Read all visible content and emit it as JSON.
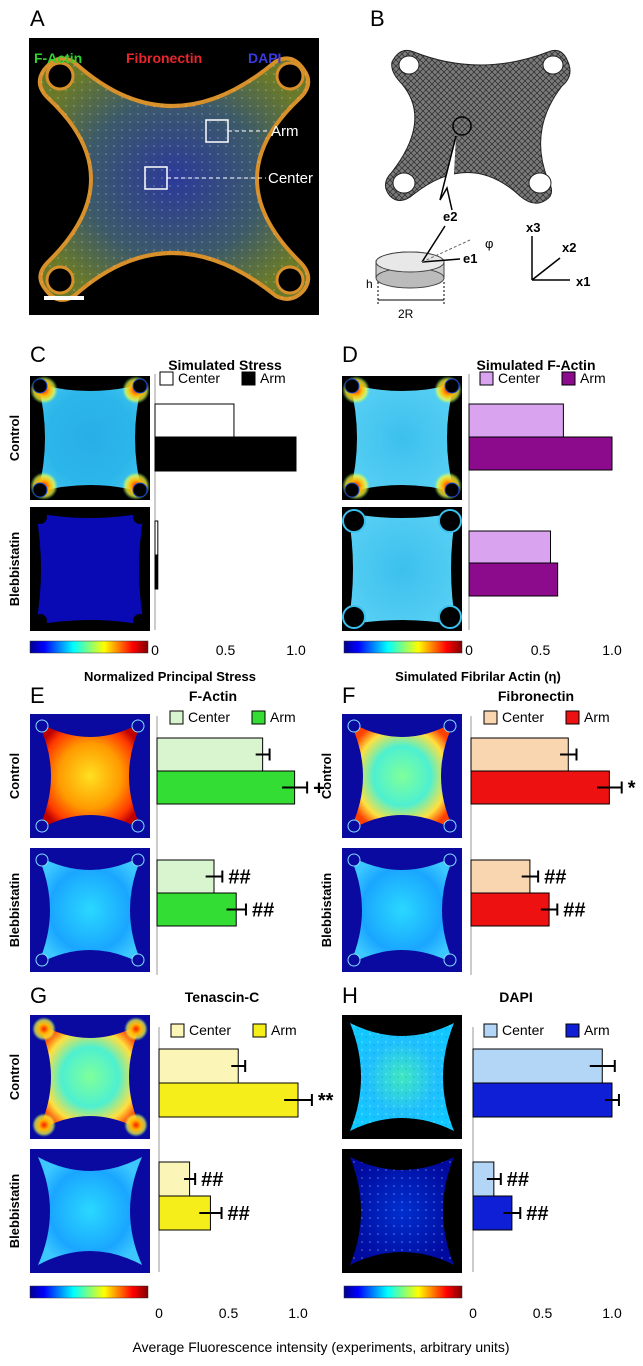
{
  "panel_letters": [
    "A",
    "B",
    "C",
    "D",
    "E",
    "F",
    "G",
    "H"
  ],
  "panelA": {
    "stain_labels": [
      {
        "text": "F-Actin",
        "color": "#2ed32e"
      },
      {
        "text": "Fibronectin",
        "color": "#e8252a"
      },
      {
        "text": "DAPI",
        "color": "#3a3adf"
      }
    ],
    "callouts": [
      "Arm",
      "Center"
    ]
  },
  "panelB": {
    "vectors": [
      "e2",
      "e1"
    ],
    "angle_symbol": "φ",
    "dims": [
      "h",
      "2R"
    ],
    "axes": [
      "x3",
      "x2",
      "x1"
    ]
  },
  "row_labels": [
    "Control",
    "Blebbistatin"
  ],
  "legend": [
    "Center",
    "Arm"
  ],
  "axis": {
    "ticks": [
      "0",
      "0.5",
      "1.0"
    ],
    "label_stress": "Normalized Principal Stress",
    "label_actin": "Simulated  Fibrilar Actin (η)",
    "label_bottom": "Average Fluorescence intensity (experiments, arbitrary units)"
  },
  "colors": {
    "center_C": "#ffffff",
    "arm_C": "#000000",
    "center_D": "#d9a3f0",
    "arm_D": "#8c0a8c",
    "center_E": "#d8f5d0",
    "arm_E": "#33dd33",
    "center_F": "#fad6b0",
    "arm_F": "#ee1111",
    "center_G": "#fbf6b8",
    "arm_G": "#f5ee1a",
    "center_H": "#b3d6f6",
    "arm_H": "#0f1fd6"
  },
  "chart_data": [
    {
      "panel": "C",
      "type": "bar",
      "title": "Simulated Stress",
      "categories": [
        "Control",
        "Blebbistatin"
      ],
      "series": [
        {
          "name": "Center",
          "values": [
            0.56,
            0.02
          ]
        },
        {
          "name": "Arm",
          "values": [
            1.0,
            0.02
          ]
        }
      ],
      "xlabel": "Normalized Principal Stress",
      "xlim": [
        0,
        1.1
      ]
    },
    {
      "panel": "D",
      "type": "bar",
      "title": "Simulated F-Actin",
      "categories": [
        "Control",
        "Blebbistatin"
      ],
      "series": [
        {
          "name": "Center",
          "values": [
            0.66,
            0.57
          ]
        },
        {
          "name": "Arm",
          "values": [
            1.0,
            0.62
          ]
        }
      ],
      "xlabel": "Simulated  Fibrilar Actin (η)",
      "xlim": [
        0,
        1.1
      ]
    },
    {
      "panel": "E",
      "type": "bar",
      "title": "F-Actin",
      "categories": [
        "Control",
        "Blebbistatin"
      ],
      "series": [
        {
          "name": "Center",
          "values": [
            0.76,
            0.41
          ],
          "errors": [
            0.05,
            0.06
          ]
        },
        {
          "name": "Arm",
          "values": [
            0.99,
            0.57
          ],
          "errors": [
            0.09,
            0.07
          ]
        }
      ],
      "annotations": [
        "+",
        "##",
        "##"
      ],
      "xlim": [
        0,
        1.1
      ]
    },
    {
      "panel": "F",
      "type": "bar",
      "title": "Fibronectin",
      "categories": [
        "Control",
        "Blebbistatin"
      ],
      "series": [
        {
          "name": "Center",
          "values": [
            0.71,
            0.43
          ],
          "errors": [
            0.06,
            0.06
          ]
        },
        {
          "name": "Arm",
          "values": [
            1.01,
            0.57
          ],
          "errors": [
            0.09,
            0.06
          ]
        }
      ],
      "annotations": [
        "*",
        "##",
        "##"
      ],
      "xlim": [
        0,
        1.1
      ]
    },
    {
      "panel": "G",
      "type": "bar",
      "title": "Tenascin-C",
      "categories": [
        "Control",
        "Blebbistatin"
      ],
      "series": [
        {
          "name": "Center",
          "values": [
            0.57,
            0.22
          ],
          "errors": [
            0.05,
            0.04
          ]
        },
        {
          "name": "Arm",
          "values": [
            1.0,
            0.37
          ],
          "errors": [
            0.1,
            0.08
          ]
        }
      ],
      "annotations": [
        "**",
        "##",
        "##"
      ],
      "xlabel": "Average Fluorescence intensity (experiments, arbitrary units)",
      "xlim": [
        0,
        1.1
      ]
    },
    {
      "panel": "H",
      "type": "bar",
      "title": "DAPI",
      "categories": [
        "Control",
        "Blebbistatin"
      ],
      "series": [
        {
          "name": "Center",
          "values": [
            0.93,
            0.15
          ],
          "errors": [
            0.09,
            0.05
          ]
        },
        {
          "name": "Arm",
          "values": [
            1.0,
            0.28
          ],
          "errors": [
            0.05,
            0.06
          ]
        }
      ],
      "annotations": [
        "##",
        "##"
      ],
      "xlim": [
        0,
        1.1
      ]
    }
  ]
}
